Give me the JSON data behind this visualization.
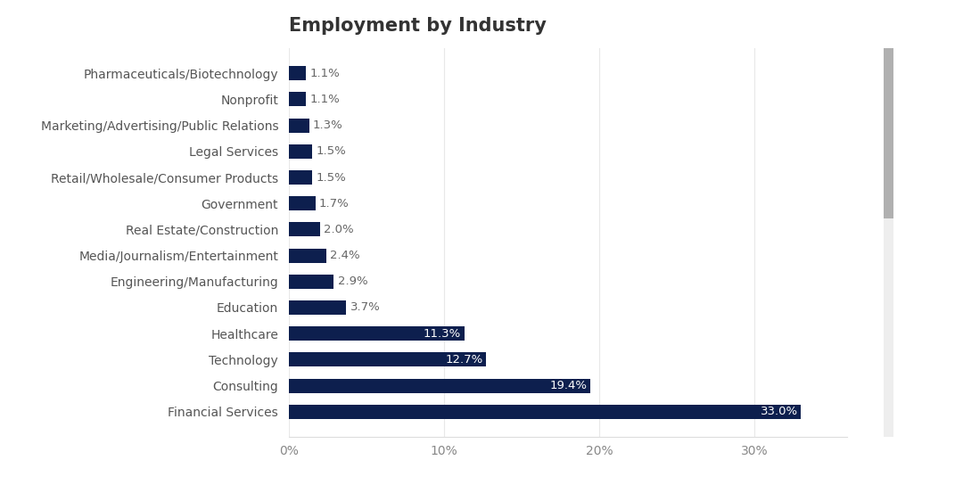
{
  "title": "Employment by Industry",
  "categories": [
    "Pharmaceuticals/Biotechnology",
    "Nonprofit",
    "Marketing/Advertising/Public Relations",
    "Legal Services",
    "Retail/Wholesale/Consumer Products",
    "Government",
    "Real Estate/Construction",
    "Media/Journalism/Entertainment",
    "Engineering/Manufacturing",
    "Education",
    "Healthcare",
    "Technology",
    "Consulting",
    "Financial Services"
  ],
  "values": [
    1.1,
    1.1,
    1.3,
    1.5,
    1.5,
    1.7,
    2.0,
    2.4,
    2.9,
    3.7,
    11.3,
    12.7,
    19.4,
    33.0
  ],
  "labels": [
    "1.1%",
    "1.1%",
    "1.3%",
    "1.5%",
    "1.5%",
    "1.7%",
    "2.0%",
    "2.4%",
    "2.9%",
    "3.7%",
    "11.3%",
    "12.7%",
    "19.4%",
    "33.0%"
  ],
  "bar_color": "#0d1f4e",
  "label_color_inside": "#ffffff",
  "label_color_outside": "#666666",
  "title_fontsize": 15,
  "label_fontsize": 9.5,
  "tick_fontsize": 10,
  "category_fontsize": 10,
  "xlim": [
    0,
    36
  ],
  "xticks": [
    0,
    10,
    20,
    30
  ],
  "xticklabels": [
    "0%",
    "10%",
    "20%",
    "30%"
  ],
  "background_color": "#ffffff",
  "axes_background": "#ffffff",
  "scrollbar_color": "#b0b0b0",
  "inside_threshold": 4.0
}
